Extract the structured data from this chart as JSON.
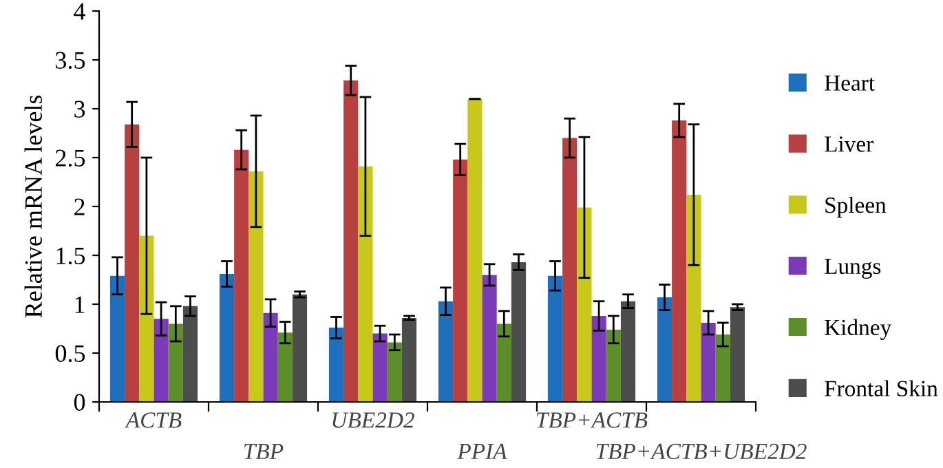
{
  "chart_data": {
    "type": "bar",
    "ylabel": "Relative mRNA levels",
    "categories": [
      "ACTB",
      "TBP",
      "UBE2D2",
      "PPIA",
      "TBP+ACTB",
      "TBP+ACTB+UBE2D2"
    ],
    "ylim": [
      0,
      4
    ],
    "yticks": [
      0,
      0.5,
      1,
      1.5,
      2,
      2.5,
      3,
      3.5,
      4
    ],
    "grid": false,
    "legend": "right",
    "series": [
      {
        "name": "Heart",
        "color": "#1f6fbf",
        "values": [
          1.29,
          1.31,
          0.76,
          1.03,
          1.29,
          1.07
        ],
        "errors": [
          0.19,
          0.13,
          0.11,
          0.14,
          0.15,
          0.13
        ]
      },
      {
        "name": "Liver",
        "color": "#b94040",
        "values": [
          2.84,
          2.58,
          3.29,
          2.48,
          2.7,
          2.88
        ],
        "errors": [
          0.23,
          0.2,
          0.15,
          0.16,
          0.2,
          0.17
        ]
      },
      {
        "name": "Spleen",
        "color": "#c8c81a",
        "values": [
          1.7,
          2.36,
          2.41,
          3.1,
          1.99,
          2.12
        ],
        "errors": [
          0.8,
          0.57,
          0.71,
          0,
          0.72,
          0.72
        ]
      },
      {
        "name": "Lungs",
        "color": "#7b3ab8",
        "values": [
          0.85,
          0.91,
          0.7,
          1.3,
          0.88,
          0.81
        ],
        "errors": [
          0.17,
          0.14,
          0.08,
          0.11,
          0.15,
          0.12
        ]
      },
      {
        "name": "Kidney",
        "color": "#5e8e2a",
        "values": [
          0.8,
          0.71,
          0.61,
          0.8,
          0.74,
          0.69
        ],
        "errors": [
          0.18,
          0.11,
          0.08,
          0.13,
          0.14,
          0.12
        ]
      },
      {
        "name": "Frontal Skin",
        "color": "#4d4d4d",
        "values": [
          0.98,
          1.1,
          0.86,
          1.43,
          1.03,
          0.97
        ],
        "errors": [
          0.1,
          0.03,
          0.02,
          0.08,
          0.07,
          0.03
        ]
      }
    ]
  }
}
